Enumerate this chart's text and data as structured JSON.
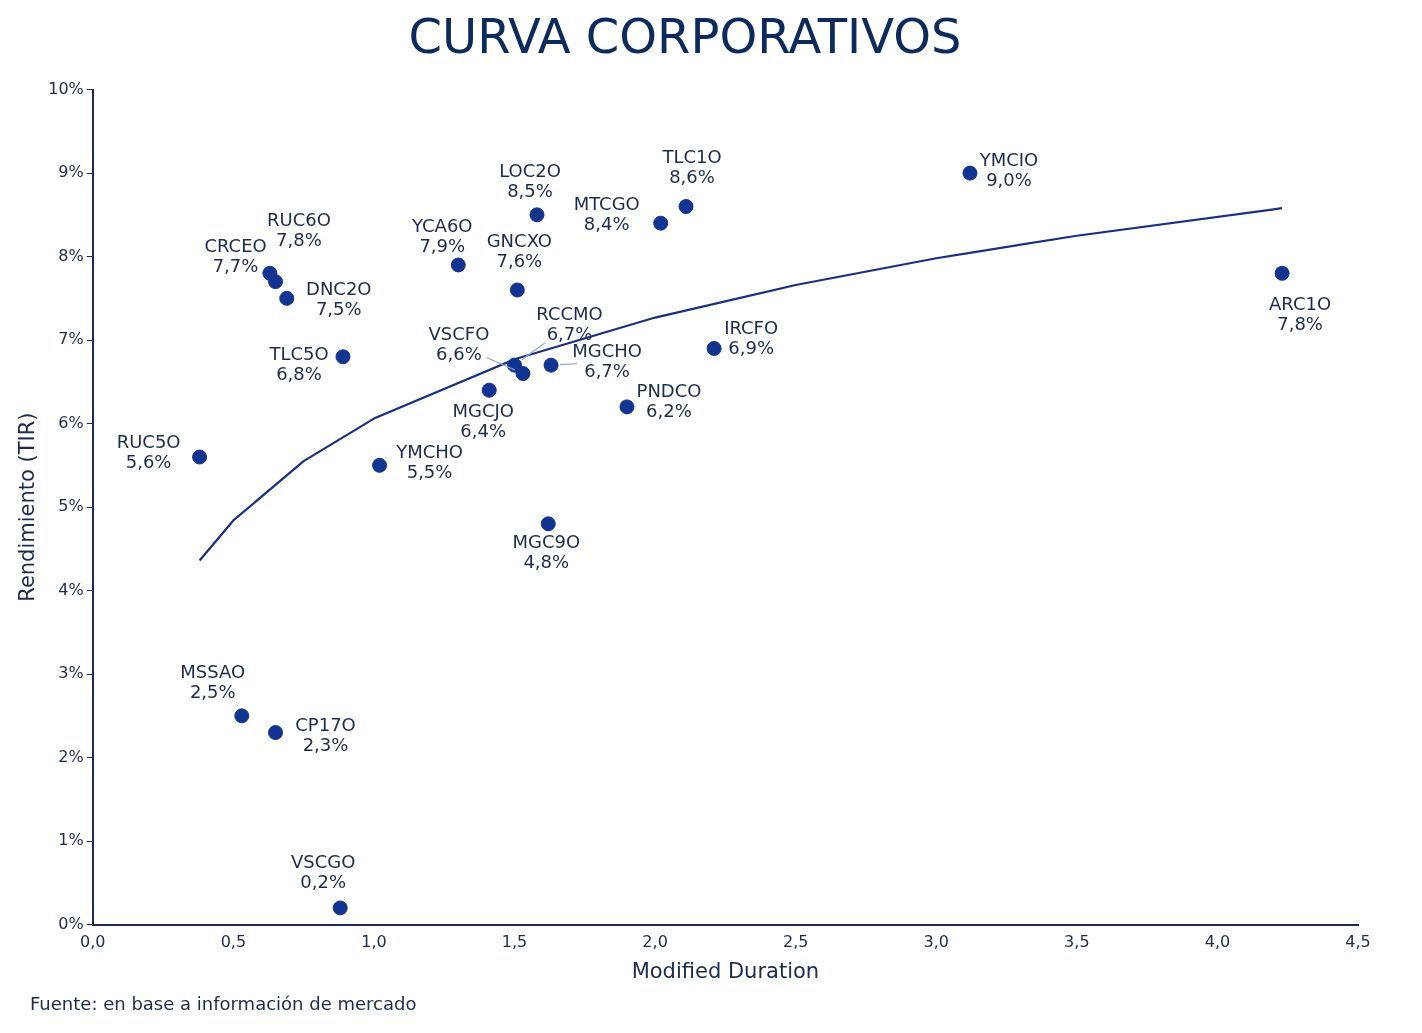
{
  "chart_data": {
    "type": "scatter",
    "title": "CURVA CORPORATIVOS",
    "xlabel": "Modified Duration",
    "ylabel": "Rendimiento (TIR)",
    "xlim": [
      0,
      4.5
    ],
    "xticks": [
      {
        "value": 0,
        "label": "0,0"
      },
      {
        "value": 0.5,
        "label": "0,5"
      },
      {
        "value": 1,
        "label": "1,0"
      },
      {
        "value": 1.5,
        "label": "1,5"
      },
      {
        "value": 2,
        "label": "2,0"
      },
      {
        "value": 2.5,
        "label": "2,5"
      },
      {
        "value": 3,
        "label": "3,0"
      },
      {
        "value": 3.5,
        "label": "3,5"
      },
      {
        "value": 4,
        "label": "4,0"
      },
      {
        "value": 4.5,
        "label": "4,5"
      }
    ],
    "ylim": [
      0,
      10
    ],
    "yticks": [
      {
        "value": 0,
        "label": "0%"
      },
      {
        "value": 1,
        "label": "1%"
      },
      {
        "value": 2,
        "label": "2%"
      },
      {
        "value": 3,
        "label": "3%"
      },
      {
        "value": 4,
        "label": "4%"
      },
      {
        "value": 5,
        "label": "5%"
      },
      {
        "value": 6,
        "label": "6%"
      },
      {
        "value": 7,
        "label": "7%"
      },
      {
        "value": 8,
        "label": "8%"
      },
      {
        "value": 9,
        "label": "9%"
      },
      {
        "value": 10,
        "label": "10%"
      }
    ],
    "grid": false,
    "legend": false,
    "marker": "circle",
    "series": [
      {
        "color": "#12338f",
        "x": [
          3.12,
          4.23,
          2.11,
          2.02,
          1.58,
          1.3,
          1.51,
          0.63,
          0.65,
          0.69,
          0.89,
          0.38,
          1.02,
          1.5,
          1.53,
          1.63,
          1.41,
          1.9,
          2.21,
          1.62,
          0.53,
          0.65,
          0.88
        ],
        "values": [
          9.0,
          7.8,
          8.6,
          8.4,
          8.5,
          7.9,
          7.6,
          7.8,
          7.7,
          7.5,
          6.8,
          5.6,
          5.5,
          6.7,
          6.6,
          6.7,
          6.4,
          6.2,
          6.9,
          4.8,
          2.5,
          2.3,
          0.2
        ],
        "value_labels": [
          "9,0%",
          "7,8%",
          "8,6%",
          "8,4%",
          "8,5%",
          "7,9%",
          "7,6%",
          "7,8%",
          "7,7%",
          "7,5%",
          "6,8%",
          "5,6%",
          "5,5%",
          "6,7%",
          "6,6%",
          "6,7%",
          "6,4%",
          "6,2%",
          "6,9%",
          "4,8%",
          "2,5%",
          "2,3%",
          "0,2%"
        ]
      },
      {
        "type": "line",
        "color": "#1b2f80",
        "marker": "none",
        "x": [
          0.38,
          0.5,
          0.75,
          1.0,
          1.5,
          2.0,
          2.5,
          3.0,
          3.5,
          4.23
        ],
        "values": [
          4.36,
          4.84,
          5.55,
          6.06,
          6.77,
          7.27,
          7.66,
          7.98,
          8.25,
          8.58
        ]
      }
    ],
    "annotations": [
      {
        "text": "YMCIO",
        "x": 3.12,
        "y": 9.0
      },
      {
        "text": "ARC1O",
        "x": 4.23,
        "y": 7.8
      },
      {
        "text": "TLC1O",
        "x": 2.11,
        "y": 8.6
      },
      {
        "text": "MTCGO",
        "x": 2.02,
        "y": 8.4
      },
      {
        "text": "LOC2O",
        "x": 1.58,
        "y": 8.5
      },
      {
        "text": "YCA6O",
        "x": 1.3,
        "y": 7.9
      },
      {
        "text": "GNCXO",
        "x": 1.51,
        "y": 7.6
      },
      {
        "text": "RUC6O",
        "x": 0.63,
        "y": 7.8
      },
      {
        "text": "CRCEO",
        "x": 0.65,
        "y": 7.7
      },
      {
        "text": "DNC2O",
        "x": 0.69,
        "y": 7.5
      },
      {
        "text": "TLC5O",
        "x": 0.89,
        "y": 6.8
      },
      {
        "text": "RUC5O",
        "x": 0.38,
        "y": 5.6
      },
      {
        "text": "YMCHO",
        "x": 1.02,
        "y": 5.5
      },
      {
        "text": "RCCMO",
        "x": 1.5,
        "y": 6.7
      },
      {
        "text": "VSCFO",
        "x": 1.53,
        "y": 6.6
      },
      {
        "text": "MGCHO",
        "x": 1.63,
        "y": 6.7
      },
      {
        "text": "MGCJO",
        "x": 1.41,
        "y": 6.4
      },
      {
        "text": "PNDCO",
        "x": 1.9,
        "y": 6.2
      },
      {
        "text": "IRCFO",
        "x": 2.21,
        "y": 6.9
      },
      {
        "text": "MGC9O",
        "x": 1.62,
        "y": 4.8
      },
      {
        "text": "MSSAO",
        "x": 0.53,
        "y": 2.5
      },
      {
        "text": "CP17O",
        "x": 0.65,
        "y": 2.3
      },
      {
        "text": "VSCGO",
        "x": 0.88,
        "y": 0.2
      },
      "Fuente: en base a información de mercado"
    ]
  }
}
